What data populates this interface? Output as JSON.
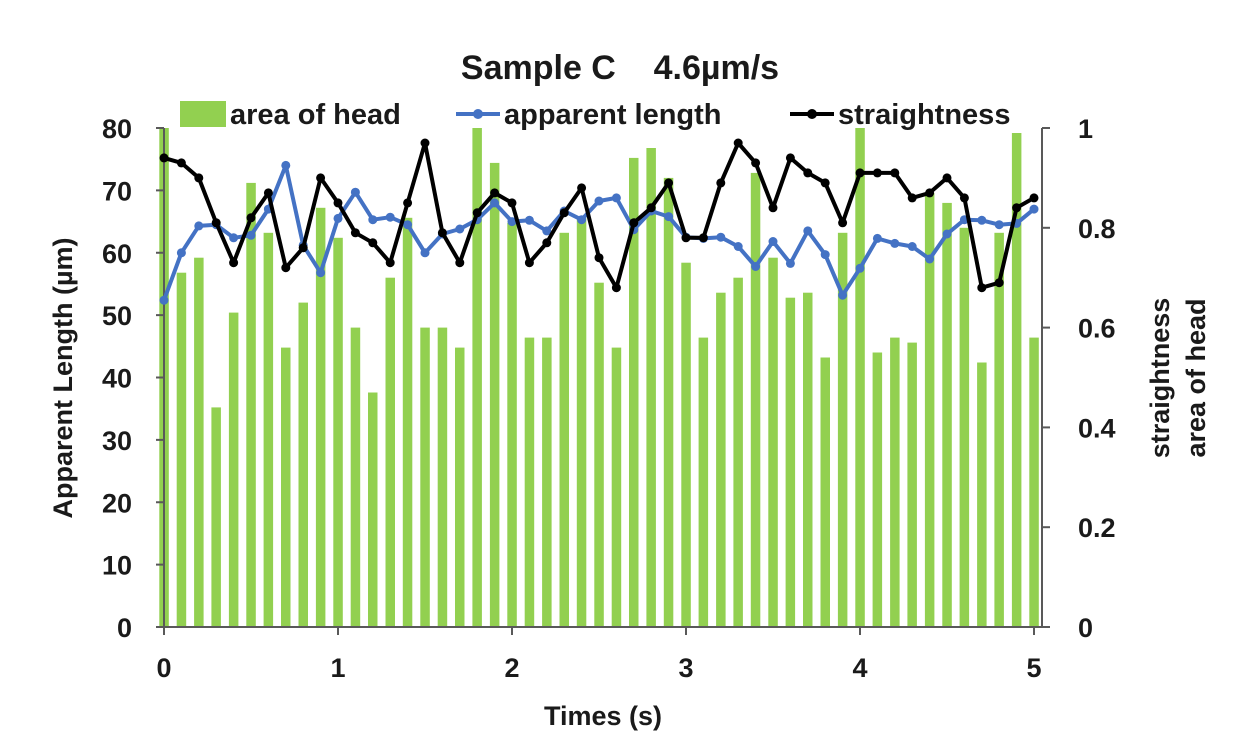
{
  "chart_data": {
    "type": "bar+line",
    "title": "Sample C    4.6µm/s",
    "xlabel": "Times (s)",
    "ylabel_left": "Apparent Length (µm)",
    "ylabel_right": [
      "straightness",
      "area of head"
    ],
    "xlim": [
      0,
      5
    ],
    "xticks": [
      "0",
      "1",
      "2",
      "3",
      "4",
      "5"
    ],
    "ylim_left": [
      0,
      80
    ],
    "yticks_left": [
      "0",
      "10",
      "20",
      "30",
      "40",
      "50",
      "60",
      "70",
      "80"
    ],
    "ylim_right": [
      0,
      1
    ],
    "yticks_right": [
      "0",
      "0.2",
      "0.4",
      "0.6",
      "0.8",
      "1"
    ],
    "grid": false,
    "legend_position": "top",
    "x": [
      0,
      0.1,
      0.2,
      0.3,
      0.4,
      0.5,
      0.6,
      0.7,
      0.8,
      0.9,
      1.0,
      1.1,
      1.2,
      1.3,
      1.4,
      1.5,
      1.6,
      1.7,
      1.8,
      1.9,
      2.0,
      2.1,
      2.2,
      2.3,
      2.4,
      2.5,
      2.6,
      2.7,
      2.8,
      2.9,
      3.0,
      3.1,
      3.2,
      3.3,
      3.4,
      3.5,
      3.6,
      3.7,
      3.8,
      3.9,
      4.0,
      4.1,
      4.2,
      4.3,
      4.4,
      4.5,
      4.6,
      4.7,
      4.8,
      4.9,
      5.0
    ],
    "series": [
      {
        "name": "area of head",
        "kind": "bar",
        "axis": "right",
        "color": "#92d050",
        "values": [
          1.0,
          0.71,
          0.74,
          0.44,
          0.63,
          0.89,
          0.79,
          0.56,
          0.65,
          0.84,
          0.78,
          0.6,
          0.47,
          0.7,
          0.82,
          0.6,
          0.6,
          0.56,
          1.0,
          0.93,
          0.81,
          0.58,
          0.58,
          0.79,
          0.82,
          0.69,
          0.56,
          0.94,
          0.96,
          0.9,
          0.73,
          0.58,
          0.67,
          0.7,
          0.91,
          0.74,
          0.66,
          0.67,
          0.54,
          0.79,
          1.0,
          0.55,
          0.58,
          0.57,
          0.87,
          0.85,
          0.8,
          0.53,
          0.79,
          0.99,
          0.58
        ]
      },
      {
        "name": "apparent length",
        "kind": "line",
        "axis": "left",
        "color": "#4472c4",
        "values": [
          52.4,
          60.0,
          64.3,
          64.5,
          62.4,
          62.8,
          67.0,
          74.0,
          61.2,
          56.8,
          65.5,
          69.7,
          65.3,
          65.7,
          64.5,
          60.0,
          63.0,
          63.8,
          65.3,
          68.0,
          65.0,
          65.2,
          63.5,
          66.7,
          65.3,
          68.3,
          68.8,
          63.7,
          66.7,
          65.8,
          62.5,
          62.3,
          62.5,
          61.0,
          57.8,
          61.8,
          58.3,
          63.5,
          59.7,
          53.2,
          57.5,
          62.3,
          61.5,
          61.0,
          59.0,
          63.0,
          65.3,
          65.2,
          64.5,
          64.7,
          67.0
        ]
      },
      {
        "name": "straightness",
        "kind": "line",
        "axis": "right",
        "color": "#000000",
        "values": [
          0.94,
          0.93,
          0.9,
          0.81,
          0.73,
          0.82,
          0.87,
          0.72,
          0.76,
          0.9,
          0.85,
          0.79,
          0.77,
          0.73,
          0.85,
          0.97,
          0.79,
          0.73,
          0.83,
          0.87,
          0.85,
          0.73,
          0.77,
          0.83,
          0.88,
          0.74,
          0.68,
          0.81,
          0.84,
          0.89,
          0.78,
          0.78,
          0.89,
          0.97,
          0.93,
          0.84,
          0.94,
          0.91,
          0.89,
          0.81,
          0.91,
          0.91,
          0.91,
          0.86,
          0.87,
          0.9,
          0.86,
          0.68,
          0.69,
          0.84,
          0.86
        ]
      }
    ]
  }
}
